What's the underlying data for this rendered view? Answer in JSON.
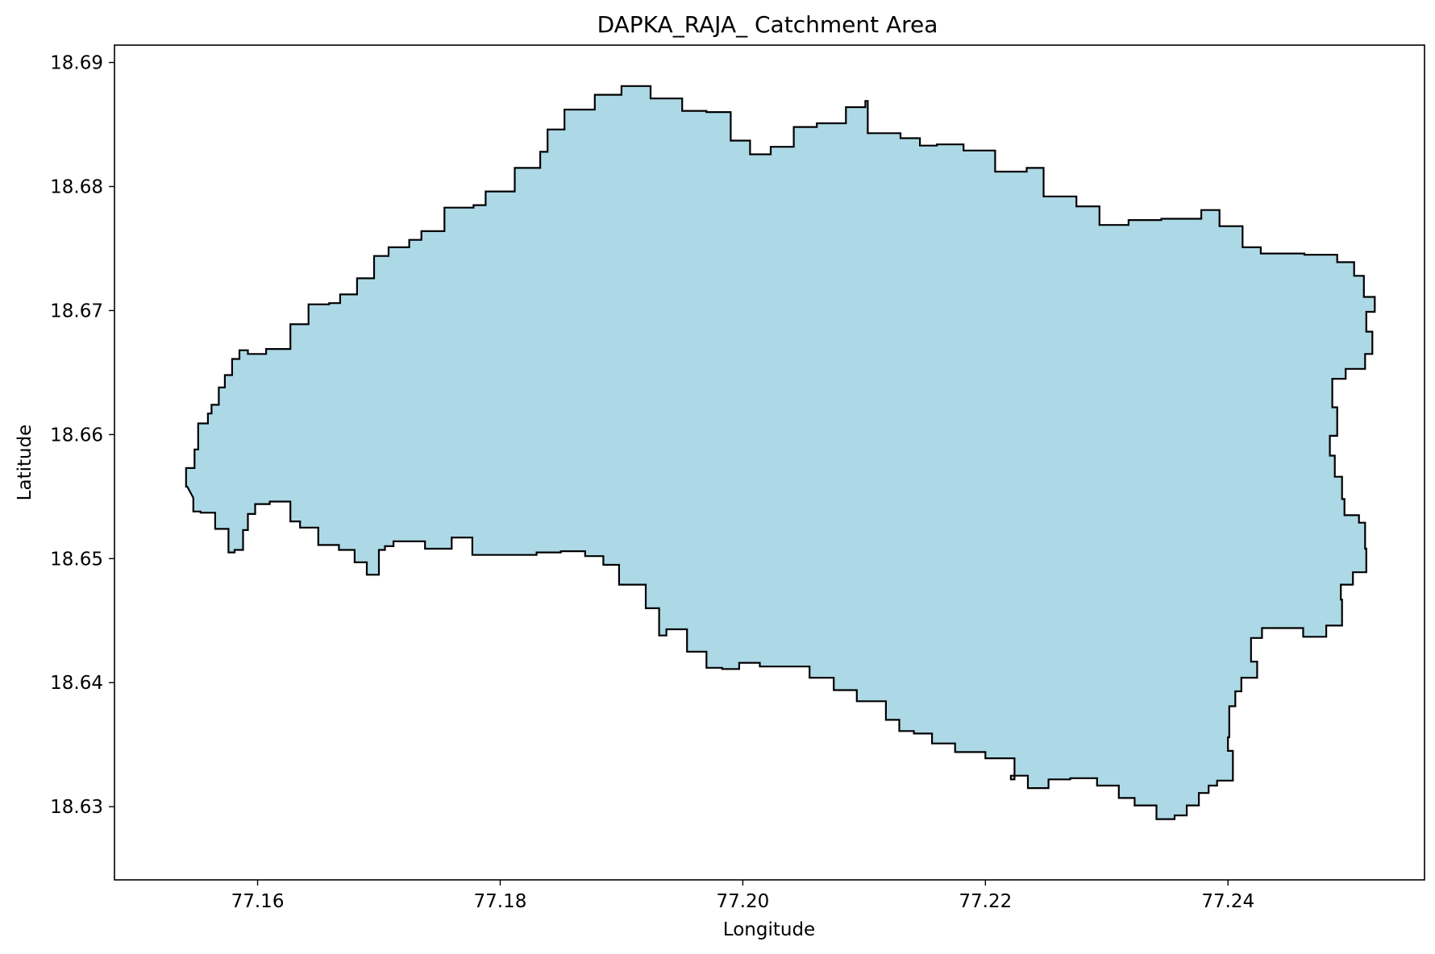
{
  "title": "DAPKA_RAJA_ Catchment Area",
  "x_axis_label": "Longitude",
  "y_axis_label": "Latitude",
  "x_ticks": [
    "77.16",
    "77.18",
    "77.20",
    "77.22",
    "77.24"
  ],
  "y_ticks": [
    "18.69",
    "18.68",
    "18.67",
    "18.66",
    "18.65",
    "18.64",
    "18.63"
  ],
  "map": {
    "feature": "catchment polygon",
    "fill_color": "#add8e6",
    "outline_color": "#000000",
    "x_range": [
      77.1482,
      77.2562
    ],
    "y_range": [
      18.6241,
      18.6914
    ],
    "boundary": [
      [
        77.1542,
        18.6558
      ],
      [
        77.1541,
        18.6573
      ],
      [
        77.1548,
        18.6588
      ],
      [
        77.1551,
        18.6609
      ],
      [
        77.1559,
        18.6617
      ],
      [
        77.1562,
        18.6624
      ],
      [
        77.1568,
        18.6638
      ],
      [
        77.1573,
        18.6648
      ],
      [
        77.1579,
        18.6661
      ],
      [
        77.1585,
        18.6668
      ],
      [
        77.1592,
        18.6665
      ],
      [
        77.1607,
        18.6669
      ],
      [
        77.1625,
        18.6669
      ],
      [
        77.1627,
        18.6689
      ],
      [
        77.1642,
        18.6705
      ],
      [
        77.1659,
        18.6706
      ],
      [
        77.1668,
        18.6713
      ],
      [
        77.1682,
        18.6726
      ],
      [
        77.1696,
        18.6744
      ],
      [
        77.1708,
        18.6751
      ],
      [
        77.1725,
        18.6757
      ],
      [
        77.1735,
        18.6764
      ],
      [
        77.1754,
        18.6783
      ],
      [
        77.1778,
        18.6785
      ],
      [
        77.1788,
        18.6796
      ],
      [
        77.1812,
        18.6815
      ],
      [
        77.1833,
        18.6828
      ],
      [
        77.1839,
        18.6846
      ],
      [
        77.1853,
        18.6862
      ],
      [
        77.1878,
        18.6874
      ],
      [
        77.19,
        18.6881
      ],
      [
        77.1924,
        18.6871
      ],
      [
        77.195,
        18.6861
      ],
      [
        77.197,
        18.686
      ],
      [
        77.199,
        18.6837
      ],
      [
        77.2006,
        18.6826
      ],
      [
        77.2023,
        18.6832
      ],
      [
        77.2042,
        18.6848
      ],
      [
        77.2061,
        18.6851
      ],
      [
        77.2085,
        18.6864
      ],
      [
        77.2101,
        18.6869
      ],
      [
        77.2103,
        18.6843
      ],
      [
        77.213,
        18.6839
      ],
      [
        77.2146,
        18.6833
      ],
      [
        77.216,
        18.6834
      ],
      [
        77.2182,
        18.6829
      ],
      [
        77.2208,
        18.6812
      ],
      [
        77.2234,
        18.6815
      ],
      [
        77.2248,
        18.6792
      ],
      [
        77.2275,
        18.6784
      ],
      [
        77.2294,
        18.6769
      ],
      [
        77.2318,
        18.6773
      ],
      [
        77.2345,
        18.6774
      ],
      [
        77.2378,
        18.6781
      ],
      [
        77.2393,
        18.6768
      ],
      [
        77.2412,
        18.6751
      ],
      [
        77.2427,
        18.6746
      ],
      [
        77.2463,
        18.6745
      ],
      [
        77.249,
        18.6739
      ],
      [
        77.2504,
        18.6728
      ],
      [
        77.2512,
        18.6711
      ],
      [
        77.2521,
        18.6699
      ],
      [
        77.2514,
        18.6683
      ],
      [
        77.2519,
        18.6665
      ],
      [
        77.2513,
        18.6653
      ],
      [
        77.2497,
        18.6645
      ],
      [
        77.2486,
        18.6622
      ],
      [
        77.249,
        18.6599
      ],
      [
        77.2484,
        18.6583
      ],
      [
        77.2488,
        18.6566
      ],
      [
        77.2494,
        18.6548
      ],
      [
        77.2496,
        18.6535
      ],
      [
        77.2508,
        18.6529
      ],
      [
        77.2513,
        18.6508
      ],
      [
        77.2514,
        18.6489
      ],
      [
        77.2503,
        18.6479
      ],
      [
        77.2493,
        18.6467
      ],
      [
        77.2494,
        18.6446
      ],
      [
        77.2481,
        18.6437
      ],
      [
        77.2462,
        18.6444
      ],
      [
        77.2441,
        18.6444
      ],
      [
        77.2428,
        18.6436
      ],
      [
        77.2419,
        18.6417
      ],
      [
        77.2424,
        18.6404
      ],
      [
        77.2411,
        18.6393
      ],
      [
        77.2406,
        18.6381
      ],
      [
        77.2401,
        18.6356
      ],
      [
        77.24,
        18.6345
      ],
      [
        77.2404,
        18.6321
      ],
      [
        77.2391,
        18.6317
      ],
      [
        77.2384,
        18.6311
      ],
      [
        77.2376,
        18.6301
      ],
      [
        77.2366,
        18.6293
      ],
      [
        77.2356,
        18.629
      ],
      [
        77.2341,
        18.6301
      ],
      [
        77.2323,
        18.6307
      ],
      [
        77.231,
        18.6317
      ],
      [
        77.2292,
        18.6323
      ],
      [
        77.227,
        18.6322
      ],
      [
        77.2252,
        18.6315
      ],
      [
        77.2235,
        18.6325
      ],
      [
        77.2221,
        18.6322
      ],
      [
        77.2224,
        18.6339
      ],
      [
        77.22,
        18.6344
      ],
      [
        77.2175,
        18.6351
      ],
      [
        77.2156,
        18.6359
      ],
      [
        77.2141,
        18.6361
      ],
      [
        77.2129,
        18.637
      ],
      [
        77.2118,
        18.6385
      ],
      [
        77.2094,
        18.6394
      ],
      [
        77.2075,
        18.6404
      ],
      [
        77.2055,
        18.6413
      ],
      [
        77.2036,
        18.6413
      ],
      [
        77.2014,
        18.6416
      ],
      [
        77.1997,
        18.6411
      ],
      [
        77.1983,
        18.6412
      ],
      [
        77.197,
        18.6425
      ],
      [
        77.1954,
        18.6443
      ],
      [
        77.1937,
        18.6438
      ],
      [
        77.1931,
        18.646
      ],
      [
        77.192,
        18.6479
      ],
      [
        77.1898,
        18.6495
      ],
      [
        77.1885,
        18.6502
      ],
      [
        77.187,
        18.6506
      ],
      [
        77.185,
        18.6505
      ],
      [
        77.183,
        18.6503
      ],
      [
        77.181,
        18.6503
      ],
      [
        77.179,
        18.6503
      ],
      [
        77.1777,
        18.6517
      ],
      [
        77.176,
        18.6508
      ],
      [
        77.1738,
        18.6514
      ],
      [
        77.1712,
        18.651
      ],
      [
        77.1705,
        18.6507
      ],
      [
        77.17,
        18.6487
      ],
      [
        77.169,
        18.6497
      ],
      [
        77.168,
        18.6507
      ],
      [
        77.1667,
        18.6511
      ],
      [
        77.165,
        18.6525
      ],
      [
        77.1635,
        18.653
      ],
      [
        77.1627,
        18.6546
      ],
      [
        77.161,
        18.6544
      ],
      [
        77.1598,
        18.6536
      ],
      [
        77.1592,
        18.6523
      ],
      [
        77.1588,
        18.6507
      ],
      [
        77.1581,
        18.6505
      ],
      [
        77.1576,
        18.6524
      ],
      [
        77.1565,
        18.6537
      ],
      [
        77.1553,
        18.6538
      ],
      [
        77.1547,
        18.6549
      ]
    ]
  }
}
